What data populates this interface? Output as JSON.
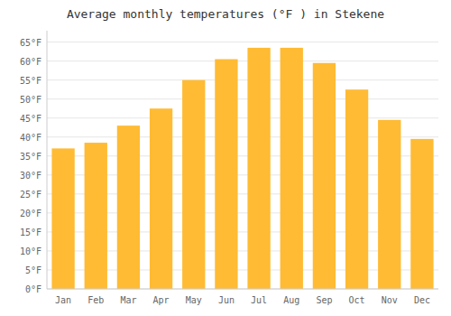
{
  "chart_data": {
    "type": "bar",
    "title": "Average monthly temperatures (°F ) in Stekene",
    "categories": [
      "Jan",
      "Feb",
      "Mar",
      "Apr",
      "May",
      "Jun",
      "Jul",
      "Aug",
      "Sep",
      "Oct",
      "Nov",
      "Dec"
    ],
    "values": [
      37,
      38.5,
      43,
      47.5,
      55,
      60.5,
      63.5,
      63.5,
      59.5,
      52.5,
      44.5,
      39.5
    ],
    "color": "#FFBB33",
    "ylim": [
      0,
      68
    ],
    "yticks": [
      {
        "value": 0,
        "label": "0°F"
      },
      {
        "value": 5,
        "label": "5°F"
      },
      {
        "value": 10,
        "label": "10°F"
      },
      {
        "value": 15,
        "label": "15°F"
      },
      {
        "value": 20,
        "label": "20°F"
      },
      {
        "value": 25,
        "label": "25°F"
      },
      {
        "value": 30,
        "label": "30°F"
      },
      {
        "value": 35,
        "label": "35°F"
      },
      {
        "value": 40,
        "label": "40°F"
      },
      {
        "value": 45,
        "label": "45°F"
      },
      {
        "value": 50,
        "label": "50°F"
      },
      {
        "value": 55,
        "label": "55°F"
      },
      {
        "value": 60,
        "label": "60°F"
      },
      {
        "value": 65,
        "label": "65°F"
      }
    ],
    "grid": true
  }
}
